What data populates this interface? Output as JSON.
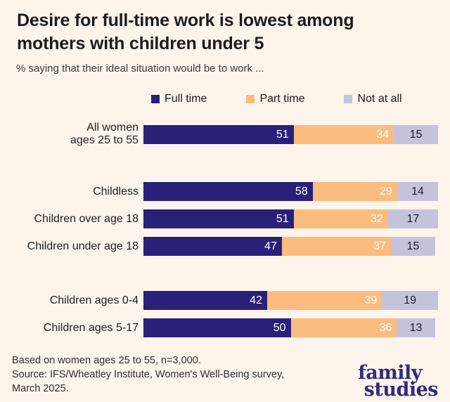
{
  "header": {
    "title_lines": [
      "Desire for full-time work is lowest among",
      "mothers with children under 5"
    ],
    "subtitle": "% saying that their ideal situation would be to work ..."
  },
  "chart_data": {
    "type": "bar",
    "stacked": true,
    "orientation": "horizontal",
    "title": "Desire for full-time work is lowest among mothers with children under 5",
    "subtitle": "% saying that their ideal situation would be to work ...",
    "categories": [
      "All women ages 25 to 55",
      "Childless",
      "Children over age 18",
      "Children under age 18",
      "Children ages 0-4",
      "Children ages 5-17"
    ],
    "category_line_breaks": [
      [
        "All women",
        "ages 25 to 55"
      ],
      [
        "Childless"
      ],
      [
        "Children over age 18"
      ],
      [
        "Children under age 18"
      ],
      [
        "Children ages 0-4"
      ],
      [
        "Children ages 5-17"
      ]
    ],
    "series": [
      {
        "name": "Full time",
        "color": "#292178",
        "value_text_color": "#ffffff",
        "value_align": "right",
        "values": [
          51,
          58,
          51,
          47,
          42,
          50
        ]
      },
      {
        "name": "Part time",
        "color": "#fbbc7f",
        "value_text_color": "#ffffff",
        "value_align": "right",
        "values": [
          34,
          29,
          32,
          37,
          39,
          36
        ]
      },
      {
        "name": "Not at all",
        "color": "#c5c3dc",
        "value_text_color": "#1c1c30",
        "value_align": "center",
        "values": [
          15,
          14,
          17,
          15,
          19,
          13
        ]
      }
    ],
    "xlim": [
      0,
      100
    ],
    "value_labels_shown": true,
    "legend_position": "top",
    "grid": false,
    "row_gaps": [
      "none",
      "large",
      "small",
      "small",
      "large",
      "small"
    ]
  },
  "footer": {
    "lines": [
      "Based on women ages 25 to 55, n=3,000.",
      "Source: IFS/Wheatley Institute, Women's Well-Being survey,",
      "March 2025."
    ]
  },
  "logo": {
    "line1": "family",
    "line2": "studies",
    "color": "#2f2b7e"
  },
  "colors": {
    "background": "#fdf4ec",
    "title_text": "#1c1c1c"
  }
}
